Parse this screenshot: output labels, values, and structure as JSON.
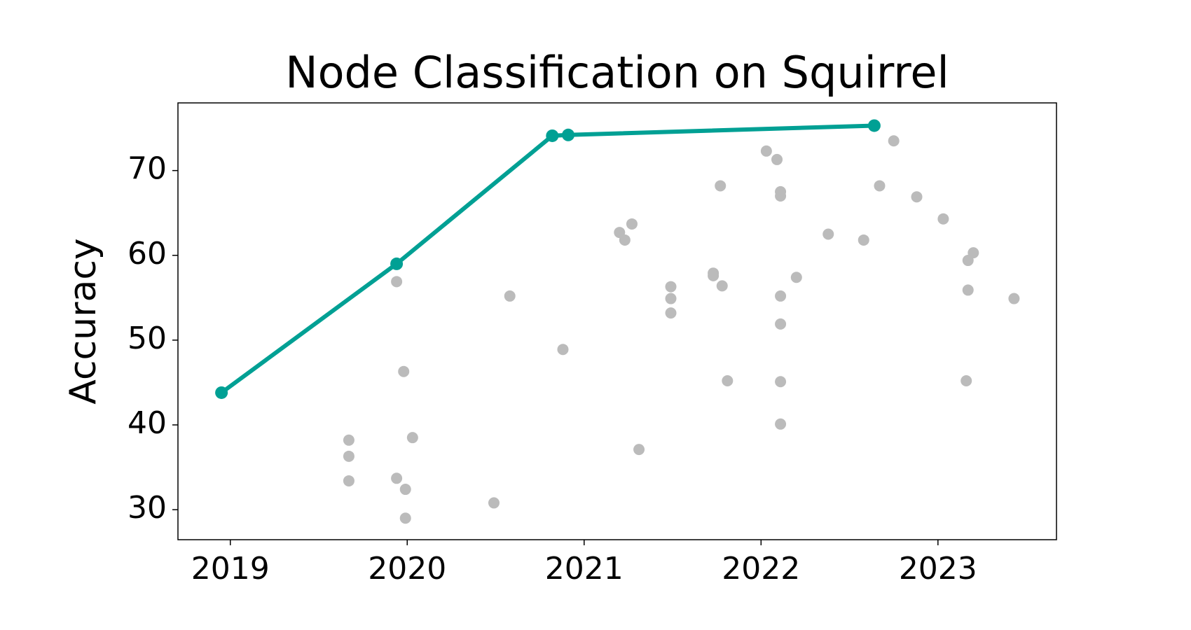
{
  "chart_data": {
    "type": "scatter",
    "title": "Node Classification on Squirrel",
    "y_label": "Accuracy",
    "xlim": [
      2018.704,
      2023.67
    ],
    "ylim": [
      26.46,
      77.98
    ],
    "xticks": [
      2019,
      2020,
      2021,
      2022,
      2023
    ],
    "yticks": [
      30,
      40,
      50,
      60,
      70
    ],
    "series": [
      {
        "type": "scatter",
        "color": "#bbbbbb",
        "x": [
          2019.67,
          2019.67,
          2019.67,
          2019.94,
          2019.98,
          2020.03,
          2019.94,
          2019.99,
          2019.99,
          2020.49,
          2020.58,
          2020.88,
          2021.2,
          2021.23,
          2021.27,
          2021.31,
          2021.49,
          2021.49,
          2021.49,
          2021.73,
          2021.73,
          2021.78,
          2021.77,
          2021.81,
          2022.03,
          2022.09,
          2022.11,
          2022.11,
          2022.11,
          2022.11,
          2022.11,
          2022.11,
          2022.2,
          2022.38,
          2022.58,
          2022.67,
          2022.75,
          2022.88,
          2023.03,
          2023.16,
          2023.17,
          2023.2,
          2023.17,
          2023.43
        ],
        "values": [
          38.2,
          36.3,
          33.4,
          56.9,
          46.3,
          38.5,
          33.7,
          32.4,
          29.0,
          30.8,
          55.2,
          48.9,
          62.7,
          61.8,
          63.7,
          37.1,
          56.3,
          54.9,
          53.2,
          57.9,
          57.6,
          56.4,
          68.2,
          45.2,
          72.3,
          71.3,
          67.5,
          67.0,
          55.2,
          51.9,
          45.1,
          40.1,
          57.4,
          62.5,
          61.8,
          68.2,
          73.5,
          66.9,
          64.3,
          45.2,
          59.4,
          60.3,
          55.9,
          54.9
        ]
      },
      {
        "type": "line",
        "color": "#00a094",
        "x": [
          2018.95,
          2019.94,
          2020.82,
          2020.91,
          2022.64
        ],
        "values": [
          43.8,
          59.0,
          74.1,
          74.2,
          75.3
        ]
      }
    ]
  }
}
